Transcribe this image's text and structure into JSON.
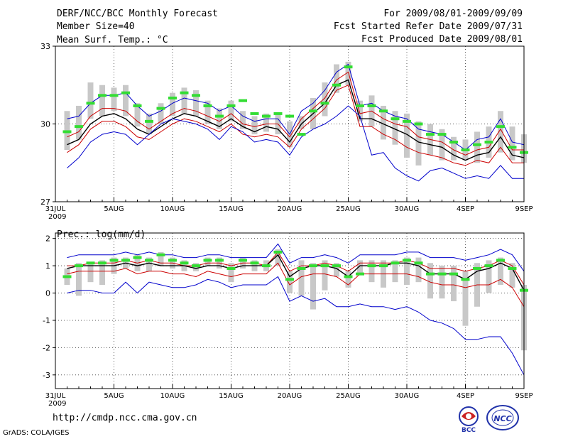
{
  "header": {
    "title": "DERF/NCC/BCC Monthly Forecast",
    "member_size": "Member Size=40",
    "period": "For 2009/08/01-2009/09/09",
    "started": "Fcst Started Refer Date 2009/07/31",
    "produced": "Fcst Produced Date 2009/08/01"
  },
  "footer": {
    "url": "http://cmdp.ncc.cma.gov.cn",
    "grads": "GrADS: COLA/IGES",
    "logo_bcc": "BCC",
    "logo_ncc": "NCC"
  },
  "colors": {
    "max_min": "#0000cc",
    "spread": "#cc0000",
    "mean": "#000000",
    "median": "#33dd33",
    "range_bar": "#c8c8c8",
    "grid": "#555555"
  },
  "chart_data": [
    {
      "type": "line",
      "title": "Mean Surf. Temp.: °C",
      "x_labels": [
        {
          "day": 0,
          "label": "31JUL",
          "sub": "2009"
        },
        {
          "day": 5,
          "label": "5AUG"
        },
        {
          "day": 10,
          "label": "10AUG"
        },
        {
          "day": 15,
          "label": "15AUG"
        },
        {
          "day": 20,
          "label": "20AUG"
        },
        {
          "day": 25,
          "label": "25AUG"
        },
        {
          "day": 30,
          "label": "30AUG"
        },
        {
          "day": 35,
          "label": "4SEP"
        },
        {
          "day": 40,
          "label": "9SEP"
        }
      ],
      "xlim": [
        0,
        40
      ],
      "ylim": [
        27,
        33
      ],
      "yticks": [
        27,
        30,
        33
      ],
      "days": [
        1,
        2,
        3,
        4,
        5,
        6,
        7,
        8,
        9,
        10,
        11,
        12,
        13,
        14,
        15,
        16,
        17,
        18,
        19,
        20,
        21,
        22,
        23,
        24,
        25,
        26,
        27,
        28,
        29,
        30,
        31,
        32,
        33,
        34,
        35,
        36,
        37,
        38,
        39,
        40
      ],
      "series": [
        {
          "name": "max",
          "color": "#0000cc",
          "values": [
            30.2,
            30.3,
            30.8,
            31.1,
            31.1,
            31.2,
            30.7,
            30.3,
            30.5,
            30.8,
            31.0,
            30.9,
            30.8,
            30.5,
            30.7,
            30.3,
            30.1,
            30.2,
            30.2,
            29.6,
            30.5,
            30.8,
            31.3,
            32.0,
            32.3,
            30.7,
            30.8,
            30.5,
            30.3,
            30.2,
            29.8,
            29.7,
            29.6,
            29.3,
            29.0,
            29.4,
            29.5,
            30.2,
            29.3,
            29.2
          ]
        },
        {
          "name": "spread_high",
          "color": "#cc0000",
          "values": [
            29.5,
            29.7,
            30.3,
            30.6,
            30.6,
            30.5,
            30.1,
            29.8,
            30.1,
            30.4,
            30.6,
            30.5,
            30.3,
            30.1,
            30.4,
            30.0,
            29.9,
            30.0,
            30.0,
            29.5,
            30.2,
            30.6,
            31.0,
            31.7,
            32.0,
            30.4,
            30.5,
            30.2,
            30.0,
            29.9,
            29.5,
            29.4,
            29.3,
            29.0,
            28.8,
            29.0,
            29.1,
            29.8,
            29.0,
            29.0
          ]
        },
        {
          "name": "mean",
          "color": "#000000",
          "values": [
            29.2,
            29.4,
            30.0,
            30.3,
            30.4,
            30.2,
            29.8,
            29.6,
            29.9,
            30.2,
            30.4,
            30.3,
            30.1,
            29.9,
            30.2,
            29.9,
            29.7,
            29.9,
            29.8,
            29.3,
            30.0,
            30.4,
            30.8,
            31.5,
            31.7,
            30.2,
            30.2,
            30.0,
            29.8,
            29.6,
            29.3,
            29.2,
            29.1,
            28.8,
            28.6,
            28.8,
            28.9,
            29.5,
            28.8,
            28.7
          ]
        },
        {
          "name": "spread_low",
          "color": "#cc0000",
          "values": [
            28.9,
            29.2,
            29.8,
            30.1,
            30.1,
            29.9,
            29.5,
            29.4,
            29.7,
            30.0,
            30.2,
            30.1,
            29.9,
            29.7,
            30.0,
            29.6,
            29.5,
            29.6,
            29.5,
            29.1,
            29.8,
            30.2,
            30.6,
            31.3,
            31.5,
            29.9,
            29.9,
            29.6,
            29.4,
            29.1,
            28.9,
            28.8,
            28.7,
            28.5,
            28.4,
            28.6,
            28.5,
            29.1,
            28.5,
            28.5
          ]
        },
        {
          "name": "min",
          "color": "#0000cc",
          "values": [
            28.3,
            28.7,
            29.3,
            29.6,
            29.7,
            29.6,
            29.2,
            29.6,
            30.0,
            30.2,
            30.1,
            30.0,
            29.8,
            29.4,
            29.9,
            29.7,
            29.3,
            29.4,
            29.3,
            28.8,
            29.5,
            29.8,
            30.0,
            30.3,
            30.7,
            30.3,
            28.8,
            28.9,
            28.3,
            28.0,
            27.8,
            28.2,
            28.3,
            28.1,
            27.9,
            28.0,
            27.9,
            28.4,
            27.9,
            27.9
          ]
        }
      ],
      "median": [
        29.7,
        29.9,
        30.8,
        31.1,
        31.1,
        31.2,
        30.7,
        30.1,
        30.6,
        31.0,
        31.2,
        31.1,
        30.7,
        30.3,
        30.7,
        30.9,
        30.4,
        30.3,
        30.4,
        30.3,
        29.6,
        30.5,
        30.8,
        31.5,
        32.2,
        30.7,
        30.7,
        30.5,
        30.2,
        30.1,
        30.0,
        29.6,
        29.6,
        29.3,
        29.0,
        29.2,
        29.3,
        29.9,
        29.1,
        28.9
      ],
      "bar_low": [
        29.0,
        29.4,
        30.2,
        30.3,
        30.5,
        30.3,
        29.9,
        29.6,
        30.0,
        30.3,
        30.4,
        30.3,
        30.0,
        29.8,
        30.1,
        29.8,
        29.6,
        29.7,
        29.6,
        29.1,
        29.8,
        29.8,
        30.3,
        31.2,
        31.5,
        30.1,
        29.9,
        29.4,
        29.2,
        28.7,
        28.4,
        28.8,
        28.6,
        28.6,
        28.6,
        28.5,
        28.7,
        28.9,
        28.6,
        28.5
      ],
      "bar_high": [
        30.5,
        30.7,
        31.6,
        31.5,
        31.4,
        31.5,
        30.8,
        30.4,
        30.8,
        31.2,
        31.4,
        31.3,
        30.9,
        30.6,
        30.9,
        30.5,
        30.3,
        30.4,
        30.4,
        30.1,
        30.3,
        31.0,
        31.6,
        32.3,
        32.4,
        30.9,
        31.1,
        30.7,
        30.5,
        30.4,
        30.1,
        30.0,
        29.8,
        29.5,
        29.4,
        29.7,
        29.9,
        30.5,
        29.9,
        29.6
      ]
    },
    {
      "type": "line",
      "title": "Prec.: log(mm/d)",
      "x_labels": [
        {
          "day": 0,
          "label": "31JUL",
          "sub": "2009"
        },
        {
          "day": 5,
          "label": "5AUG"
        },
        {
          "day": 10,
          "label": "10AUG"
        },
        {
          "day": 15,
          "label": "15AUG"
        },
        {
          "day": 20,
          "label": "20AUG"
        },
        {
          "day": 25,
          "label": "25AUG"
        },
        {
          "day": 30,
          "label": "30AUG"
        },
        {
          "day": 35,
          "label": "4SEP"
        },
        {
          "day": 40,
          "label": "9SEP"
        }
      ],
      "xlim": [
        0,
        40
      ],
      "ylim": [
        -3.5,
        2.2
      ],
      "yticks": [
        -3,
        -2,
        -1,
        0,
        1,
        2
      ],
      "days": [
        1,
        2,
        3,
        4,
        5,
        6,
        7,
        8,
        9,
        10,
        11,
        12,
        13,
        14,
        15,
        16,
        17,
        18,
        19,
        20,
        21,
        22,
        23,
        24,
        25,
        26,
        27,
        28,
        29,
        30,
        31,
        32,
        33,
        34,
        35,
        36,
        37,
        38,
        39,
        40
      ],
      "series": [
        {
          "name": "max",
          "color": "#0000cc",
          "values": [
            1.3,
            1.4,
            1.4,
            1.4,
            1.4,
            1.5,
            1.4,
            1.5,
            1.4,
            1.4,
            1.3,
            1.3,
            1.4,
            1.4,
            1.3,
            1.3,
            1.3,
            1.3,
            1.8,
            1.1,
            1.3,
            1.3,
            1.4,
            1.3,
            1.1,
            1.4,
            1.4,
            1.4,
            1.4,
            1.5,
            1.5,
            1.3,
            1.3,
            1.3,
            1.2,
            1.3,
            1.4,
            1.6,
            1.4,
            0.8
          ]
        },
        {
          "name": "spread_high",
          "color": "#cc0000",
          "values": [
            1.0,
            1.0,
            1.1,
            1.1,
            1.1,
            1.2,
            1.1,
            1.2,
            1.1,
            1.1,
            1.0,
            1.0,
            1.1,
            1.1,
            1.0,
            1.1,
            1.1,
            1.0,
            1.5,
            0.8,
            1.0,
            1.0,
            1.1,
            1.0,
            0.8,
            1.1,
            1.1,
            1.1,
            1.1,
            1.2,
            1.1,
            0.9,
            0.9,
            0.9,
            0.8,
            0.9,
            1.0,
            1.2,
            1.0,
            0.3
          ]
        },
        {
          "name": "mean",
          "color": "#000000",
          "values": [
            0.9,
            1.0,
            1.0,
            1.0,
            1.0,
            1.1,
            1.0,
            1.1,
            1.0,
            1.0,
            1.0,
            0.9,
            1.0,
            1.0,
            0.9,
            1.0,
            1.0,
            1.0,
            1.4,
            0.6,
            0.9,
            1.0,
            1.0,
            0.9,
            0.6,
            1.0,
            1.0,
            1.0,
            1.1,
            1.1,
            1.0,
            0.7,
            0.7,
            0.7,
            0.5,
            0.8,
            0.9,
            1.1,
            0.9,
            0.1
          ]
        },
        {
          "name": "spread_low",
          "color": "#cc0000",
          "values": [
            0.7,
            0.8,
            0.8,
            0.8,
            0.8,
            0.9,
            0.7,
            0.8,
            0.8,
            0.7,
            0.7,
            0.6,
            0.8,
            0.7,
            0.6,
            0.7,
            0.7,
            0.7,
            1.1,
            0.3,
            0.6,
            0.7,
            0.7,
            0.6,
            0.3,
            0.7,
            0.7,
            0.7,
            0.7,
            0.7,
            0.6,
            0.4,
            0.3,
            0.3,
            0.2,
            0.3,
            0.3,
            0.5,
            0.2,
            -0.5
          ]
        },
        {
          "name": "min",
          "color": "#0000cc",
          "values": [
            0.0,
            0.1,
            0.1,
            0.0,
            0.0,
            0.4,
            0.0,
            0.4,
            0.3,
            0.2,
            0.2,
            0.3,
            0.5,
            0.4,
            0.2,
            0.3,
            0.3,
            0.3,
            0.6,
            -0.3,
            -0.1,
            -0.3,
            -0.2,
            -0.5,
            -0.5,
            -0.4,
            -0.5,
            -0.5,
            -0.6,
            -0.5,
            -0.7,
            -1.0,
            -1.1,
            -1.3,
            -1.7,
            -1.7,
            -1.6,
            -1.6,
            -2.2,
            -3.0
          ]
        }
      ],
      "median": [
        0.6,
        1.0,
        1.1,
        1.1,
        1.2,
        1.2,
        1.3,
        1.2,
        1.4,
        1.2,
        1.1,
        1.0,
        1.2,
        1.2,
        0.9,
        1.2,
        1.1,
        1.0,
        1.5,
        0.5,
        0.9,
        1.0,
        1.0,
        1.0,
        0.6,
        0.7,
        1.0,
        1.0,
        1.1,
        1.2,
        1.1,
        0.7,
        0.7,
        0.7,
        0.5,
        0.9,
        1.0,
        1.2,
        0.9,
        0.1
      ],
      "bar_low": [
        0.3,
        -0.1,
        0.4,
        0.3,
        0.7,
        0.9,
        0.8,
        0.8,
        1.0,
        0.9,
        0.8,
        0.8,
        1.0,
        0.9,
        0.4,
        0.9,
        0.8,
        0.8,
        1.0,
        0.0,
        -0.1,
        -0.6,
        0.1,
        0.6,
        0.2,
        0.7,
        0.4,
        0.2,
        0.4,
        0.3,
        0.4,
        -0.2,
        -0.2,
        -0.3,
        -1.2,
        -0.5,
        0.0,
        0.3,
        0.2,
        -2.1
      ],
      "bar_high": [
        0.9,
        1.1,
        1.1,
        1.2,
        1.3,
        1.3,
        1.4,
        1.3,
        1.5,
        1.3,
        1.2,
        1.1,
        1.3,
        1.3,
        1.1,
        1.3,
        1.2,
        1.2,
        1.6,
        0.8,
        1.2,
        1.1,
        1.2,
        1.1,
        0.8,
        1.2,
        1.2,
        1.2,
        1.2,
        1.3,
        1.3,
        1.1,
        1.0,
        1.0,
        0.8,
        1.1,
        1.2,
        1.3,
        1.1,
        0.3
      ]
    }
  ]
}
